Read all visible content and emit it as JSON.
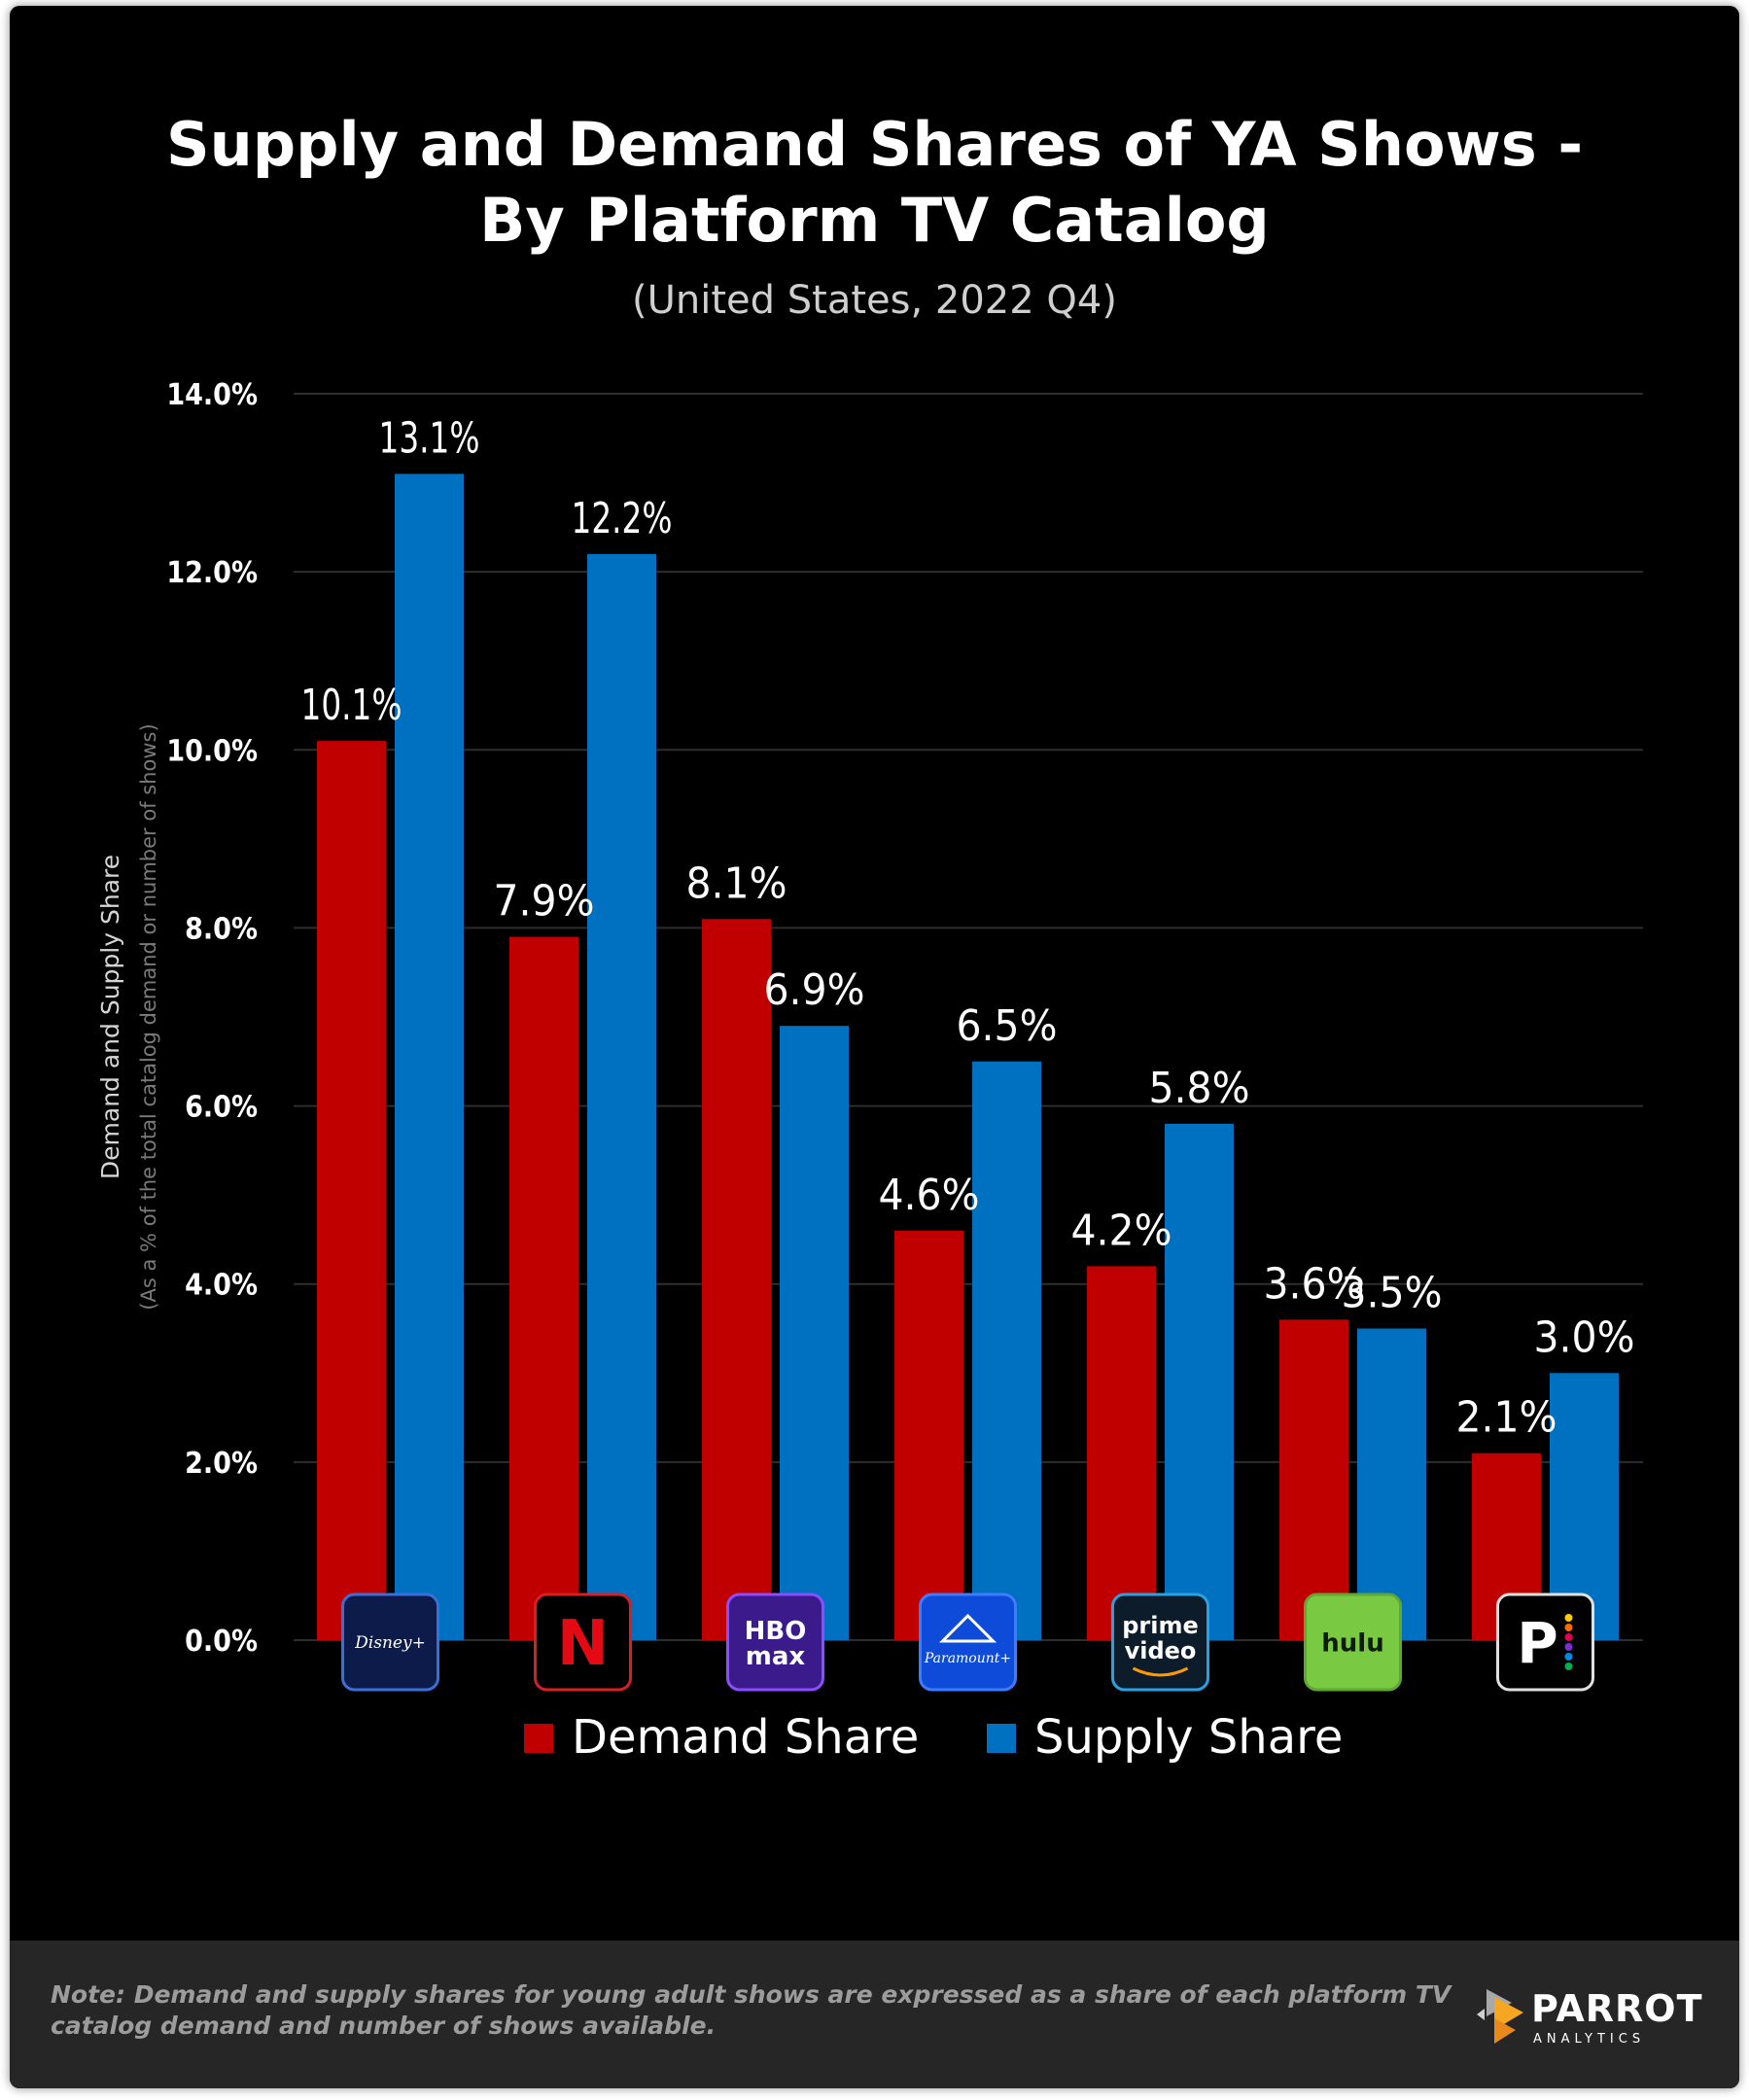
{
  "title_lines": [
    "Supply and Demand Shares of YA Shows  -",
    "By Platform TV Catalog"
  ],
  "subtitle": "(United States, 2022 Q4)",
  "colors": {
    "demand": "#c00000",
    "supply": "#0070c0",
    "background": "#000000",
    "gridline": "#2e2e2e"
  },
  "chart_data": {
    "type": "bar",
    "title": "Supply and Demand Shares of YA Shows - By Platform TV Catalog",
    "subtitle": "(United States, 2022 Q4)",
    "categories": [
      "Disney+",
      "Netflix",
      "HBO Max",
      "Paramount+",
      "Prime Video",
      "Hulu",
      "Peacock"
    ],
    "series": [
      {
        "name": "Demand Share",
        "values": [
          10.1,
          7.9,
          8.1,
          4.6,
          4.2,
          3.6,
          2.1
        ],
        "labels": [
          "10.1%",
          "7.9%",
          "8.1%",
          "4.6%",
          "4.2%",
          "3.6%",
          "2.1%"
        ]
      },
      {
        "name": "Supply Share",
        "values": [
          13.1,
          12.2,
          6.9,
          6.5,
          5.8,
          3.5,
          3.0
        ],
        "labels": [
          "13.1%",
          "12.2%",
          "6.9%",
          "6.5%",
          "5.8%",
          "3.5%",
          "3.0%"
        ]
      }
    ],
    "ylim": [
      0,
      14
    ],
    "yticks": [
      0,
      2,
      4,
      6,
      8,
      10,
      12,
      14
    ],
    "ytick_labels": [
      "0.0%",
      "2.0%",
      "4.0%",
      "6.0%",
      "8.0%",
      "10.0%",
      "12.0%",
      "14.0%"
    ],
    "ylabel": "Demand and Supply Share",
    "ylabel_sub": "(As a % of the total catalog demand or number of shows)",
    "xlabel": "",
    "grid": true,
    "legend": "bottom-center"
  },
  "platform_logos": [
    {
      "name": "Disney+",
      "text": "Disney+",
      "icon": "disney-plus-logo"
    },
    {
      "name": "Netflix",
      "text": "N",
      "icon": "netflix-logo"
    },
    {
      "name": "HBO Max",
      "text": "HBO max",
      "icon": "hbo-max-logo"
    },
    {
      "name": "Paramount+",
      "text": "Paramount+",
      "icon": "paramount-plus-logo"
    },
    {
      "name": "Prime Video",
      "text": "prime video",
      "icon": "prime-video-logo"
    },
    {
      "name": "Hulu",
      "text": "hulu",
      "icon": "hulu-logo"
    },
    {
      "name": "Peacock",
      "text": "P",
      "icon": "peacock-logo"
    }
  ],
  "footer": {
    "note": "Note: Demand and supply shares for young adult shows are expressed as a share of each platform TV catalog demand and number of shows available.",
    "brand": "PARROT",
    "brand_sub": "ANALYTICS"
  }
}
